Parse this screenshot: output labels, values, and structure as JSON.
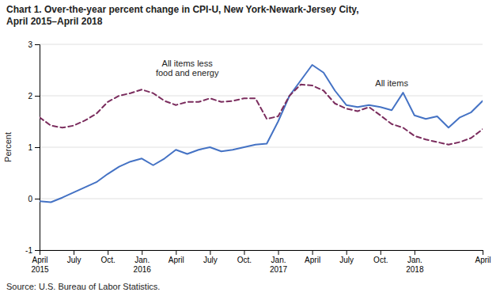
{
  "chart_data": {
    "type": "line",
    "title": "Chart 1. Over-the-year percent change in CPI-U, New York-Newark-Jersey City,\nApril 2015–April 2018",
    "y_label": "Percent",
    "source": "Source: U.S. Bureau of Labor Statistics.",
    "categories": [
      "April\n2015",
      null,
      null,
      "July",
      null,
      null,
      "Oct.",
      null,
      null,
      "Jan.\n2016",
      null,
      null,
      "April",
      null,
      null,
      "July",
      null,
      null,
      "Oct.",
      null,
      null,
      "Jan.\n2017",
      null,
      null,
      "April",
      null,
      null,
      "July",
      null,
      null,
      "Oct.",
      null,
      null,
      "Jan.\n2018",
      null,
      null,
      null,
      null,
      null,
      "April"
    ],
    "series": [
      {
        "color": "#4472C4",
        "line_style": "solid",
        "values": [
          -0.05,
          -0.07,
          0.02,
          0.12,
          0.22,
          0.32,
          0.48,
          0.62,
          0.72,
          0.78,
          0.65,
          0.78,
          0.95,
          0.87,
          0.95,
          1.0,
          0.92,
          0.95,
          1.0,
          1.05,
          1.07,
          1.5,
          2.0,
          2.3,
          2.6,
          2.45,
          2.1,
          1.82,
          1.78,
          1.82,
          1.78,
          1.72,
          2.06,
          1.62,
          1.55,
          1.6,
          1.38,
          1.58,
          1.68,
          1.9
        ]
      },
      {
        "color": "#7B2D5E",
        "line_style": "dashed",
        "values": [
          1.58,
          1.42,
          1.38,
          1.42,
          1.52,
          1.65,
          1.88,
          2.0,
          2.05,
          2.12,
          2.05,
          1.9,
          1.82,
          1.88,
          1.88,
          1.95,
          1.88,
          1.9,
          1.95,
          1.95,
          1.55,
          1.6,
          2.0,
          2.22,
          2.2,
          2.1,
          1.85,
          1.75,
          1.7,
          1.78,
          1.62,
          1.45,
          1.38,
          1.22,
          1.15,
          1.1,
          1.05,
          1.1,
          1.18,
          1.35
        ]
      }
    ],
    "annotations": [
      {
        "text": "All items less\nfood and energy",
        "x": 13,
        "y": 2.38
      },
      {
        "text": "All items",
        "x": 31,
        "y": 2.18
      }
    ],
    "ylim": [
      -1,
      3
    ],
    "yticks": [
      -1,
      0,
      1,
      2,
      3
    ],
    "grid": true
  }
}
